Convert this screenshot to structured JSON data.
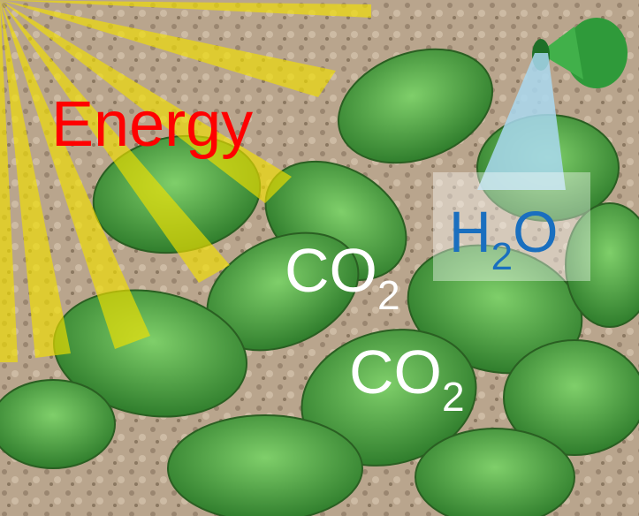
{
  "labels": {
    "energy": "Energy",
    "water": {
      "element1": "H",
      "subscript": "2",
      "element2": "O"
    },
    "co2_upper": {
      "formula": "CO",
      "subscript": "2"
    },
    "co2_lower": {
      "formula": "CO",
      "subscript": "2"
    }
  }
}
